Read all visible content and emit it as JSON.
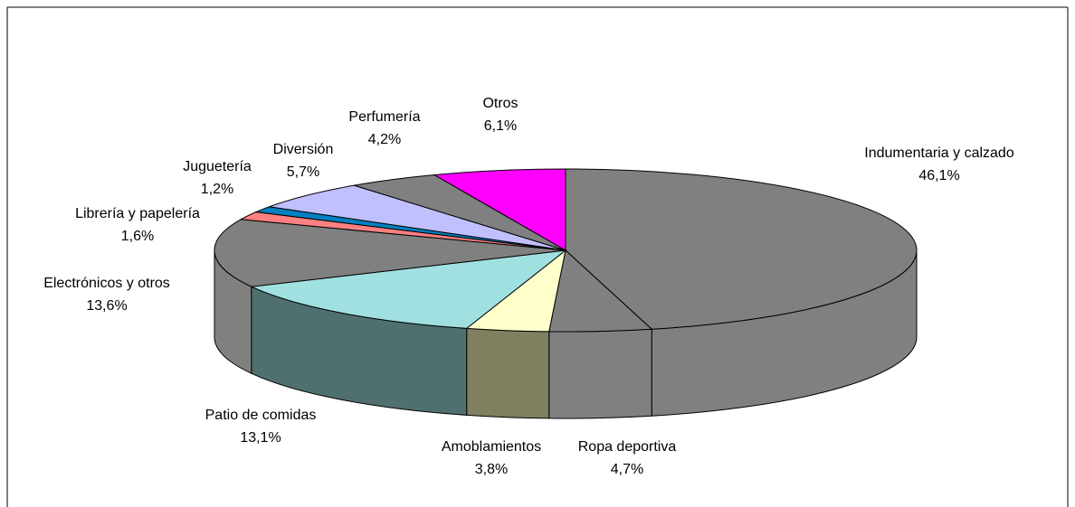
{
  "chart_data": {
    "type": "pie3d",
    "categories": [
      "Indumentaria y calzado",
      "Ropa deportiva",
      "Amoblamientos",
      "Patio de comidas",
      "Electrónicos y otros",
      "Librería y papelería",
      "Juguetería",
      "Diversión",
      "Perfumería",
      "Otros"
    ],
    "values": [
      46.1,
      4.7,
      3.8,
      13.1,
      13.6,
      1.6,
      1.2,
      5.7,
      4.2,
      6.1
    ],
    "value_labels": [
      "46,1%",
      "4,7%",
      "3,8%",
      "13,1%",
      "13,6%",
      "1,6%",
      "1,2%",
      "5,7%",
      "4,2%",
      "6,1%"
    ],
    "colors": [
      "#808080",
      "#808080",
      "#ffffcc",
      "#a0e0e0",
      "#808080",
      "#ff8080",
      "#0080c0",
      "#c0c0ff",
      "#808080",
      "#ff00ff"
    ],
    "side_colors": [
      "#808080",
      "#808080",
      "#808060",
      "#507070",
      "#808080",
      "#804040",
      "#004060",
      "#606080",
      "#808080",
      "#800080"
    ]
  }
}
